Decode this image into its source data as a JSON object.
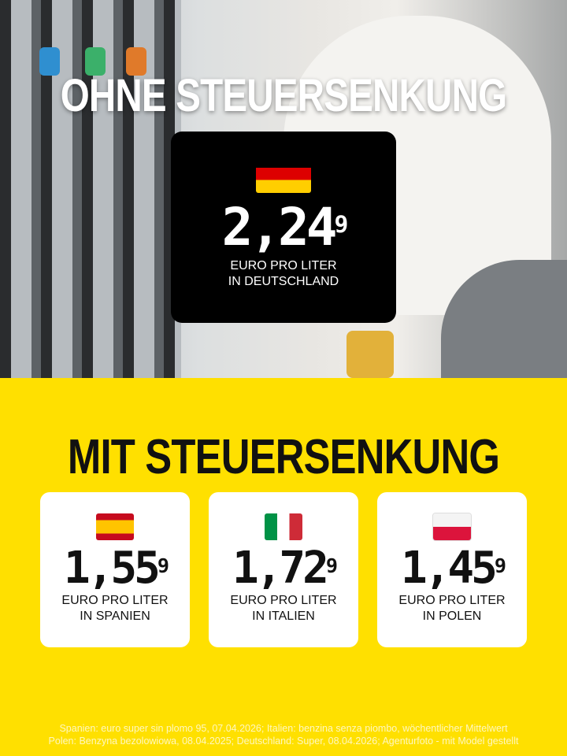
{
  "top": {
    "title": "OHNE STEUERSENKUNG",
    "country": {
      "flag": "germany-flag",
      "price_main": "2,24",
      "price_sup": "9",
      "unit": "EURO PRO LITER",
      "location": "IN DEUTSCHLAND"
    }
  },
  "middle": {
    "title": "MIT STEUERSENKUNG"
  },
  "cards": [
    {
      "flag": "spain-flag",
      "price_main": "1,55",
      "price_sup": "9",
      "unit": "EURO PRO LITER",
      "location": "IN SPANIEN"
    },
    {
      "flag": "italy-flag",
      "price_main": "1,72",
      "price_sup": "9",
      "unit": "EURO PRO LITER",
      "location": "IN ITALIEN"
    },
    {
      "flag": "poland-flag",
      "price_main": "1,45",
      "price_sup": "9",
      "unit": "EURO PRO LITER",
      "location": "IN POLEN"
    }
  ],
  "footer": {
    "line1": "Spanien: euro super sin plomo 95, 07.04.2026; Italien: benzina senza piombo, wöchentlicher Mittelwert",
    "line2": "Polen: Benzyna bezolowiowa, 08.04.2025; Deutschland: Super, 08.04.2026; Agenturfoto - mit Model gestellt"
  },
  "colors": {
    "background": "#ffe000",
    "box": "#000000"
  }
}
